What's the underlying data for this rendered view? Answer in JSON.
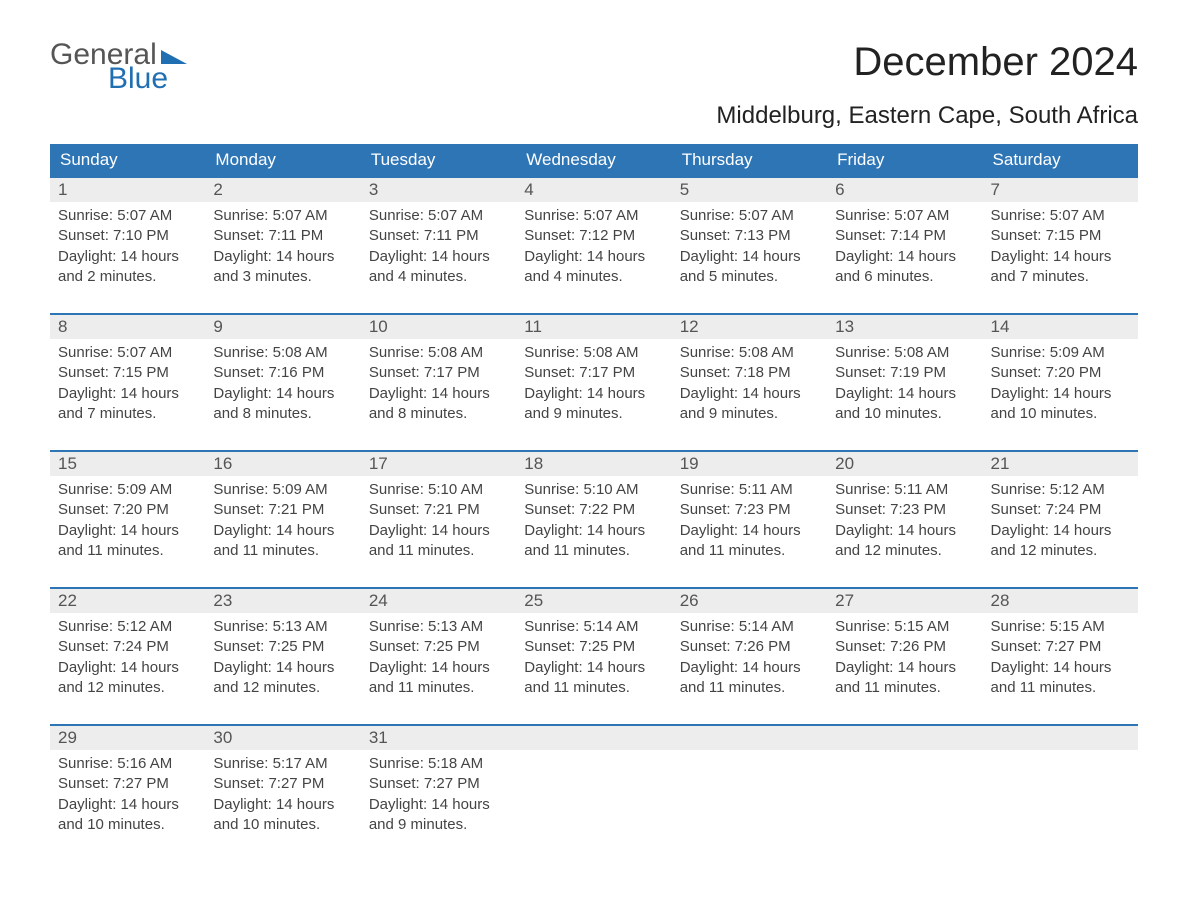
{
  "logo": {
    "text1": "General",
    "text2": "Blue",
    "triangle_color": "#1f6fb2"
  },
  "title": "December 2024",
  "subtitle": "Middelburg, Eastern Cape, South Africa",
  "colors": {
    "header_bg": "#2e75b6",
    "header_text": "#ffffff",
    "daynum_bg": "#ededed",
    "daynum_text": "#555555",
    "body_text": "#444444",
    "row_border": "#2e75b6",
    "page_bg": "#ffffff",
    "logo_gray": "#555555",
    "logo_blue": "#1f6fb2"
  },
  "typography": {
    "title_fontsize": 40,
    "subtitle_fontsize": 24,
    "header_fontsize": 17,
    "daynum_fontsize": 17,
    "body_fontsize": 15,
    "font_family": "Arial"
  },
  "layout": {
    "columns": 7,
    "rows": 5,
    "col_width_pct": 14.28
  },
  "weekdays": [
    "Sunday",
    "Monday",
    "Tuesday",
    "Wednesday",
    "Thursday",
    "Friday",
    "Saturday"
  ],
  "days": [
    {
      "n": "1",
      "sunrise": "5:07 AM",
      "sunset": "7:10 PM",
      "dl": "14 hours and 2 minutes."
    },
    {
      "n": "2",
      "sunrise": "5:07 AM",
      "sunset": "7:11 PM",
      "dl": "14 hours and 3 minutes."
    },
    {
      "n": "3",
      "sunrise": "5:07 AM",
      "sunset": "7:11 PM",
      "dl": "14 hours and 4 minutes."
    },
    {
      "n": "4",
      "sunrise": "5:07 AM",
      "sunset": "7:12 PM",
      "dl": "14 hours and 4 minutes."
    },
    {
      "n": "5",
      "sunrise": "5:07 AM",
      "sunset": "7:13 PM",
      "dl": "14 hours and 5 minutes."
    },
    {
      "n": "6",
      "sunrise": "5:07 AM",
      "sunset": "7:14 PM",
      "dl": "14 hours and 6 minutes."
    },
    {
      "n": "7",
      "sunrise": "5:07 AM",
      "sunset": "7:15 PM",
      "dl": "14 hours and 7 minutes."
    },
    {
      "n": "8",
      "sunrise": "5:07 AM",
      "sunset": "7:15 PM",
      "dl": "14 hours and 7 minutes."
    },
    {
      "n": "9",
      "sunrise": "5:08 AM",
      "sunset": "7:16 PM",
      "dl": "14 hours and 8 minutes."
    },
    {
      "n": "10",
      "sunrise": "5:08 AM",
      "sunset": "7:17 PM",
      "dl": "14 hours and 8 minutes."
    },
    {
      "n": "11",
      "sunrise": "5:08 AM",
      "sunset": "7:17 PM",
      "dl": "14 hours and 9 minutes."
    },
    {
      "n": "12",
      "sunrise": "5:08 AM",
      "sunset": "7:18 PM",
      "dl": "14 hours and 9 minutes."
    },
    {
      "n": "13",
      "sunrise": "5:08 AM",
      "sunset": "7:19 PM",
      "dl": "14 hours and 10 minutes."
    },
    {
      "n": "14",
      "sunrise": "5:09 AM",
      "sunset": "7:20 PM",
      "dl": "14 hours and 10 minutes."
    },
    {
      "n": "15",
      "sunrise": "5:09 AM",
      "sunset": "7:20 PM",
      "dl": "14 hours and 11 minutes."
    },
    {
      "n": "16",
      "sunrise": "5:09 AM",
      "sunset": "7:21 PM",
      "dl": "14 hours and 11 minutes."
    },
    {
      "n": "17",
      "sunrise": "5:10 AM",
      "sunset": "7:21 PM",
      "dl": "14 hours and 11 minutes."
    },
    {
      "n": "18",
      "sunrise": "5:10 AM",
      "sunset": "7:22 PM",
      "dl": "14 hours and 11 minutes."
    },
    {
      "n": "19",
      "sunrise": "5:11 AM",
      "sunset": "7:23 PM",
      "dl": "14 hours and 11 minutes."
    },
    {
      "n": "20",
      "sunrise": "5:11 AM",
      "sunset": "7:23 PM",
      "dl": "14 hours and 12 minutes."
    },
    {
      "n": "21",
      "sunrise": "5:12 AM",
      "sunset": "7:24 PM",
      "dl": "14 hours and 12 minutes."
    },
    {
      "n": "22",
      "sunrise": "5:12 AM",
      "sunset": "7:24 PM",
      "dl": "14 hours and 12 minutes."
    },
    {
      "n": "23",
      "sunrise": "5:13 AM",
      "sunset": "7:25 PM",
      "dl": "14 hours and 12 minutes."
    },
    {
      "n": "24",
      "sunrise": "5:13 AM",
      "sunset": "7:25 PM",
      "dl": "14 hours and 11 minutes."
    },
    {
      "n": "25",
      "sunrise": "5:14 AM",
      "sunset": "7:25 PM",
      "dl": "14 hours and 11 minutes."
    },
    {
      "n": "26",
      "sunrise": "5:14 AM",
      "sunset": "7:26 PM",
      "dl": "14 hours and 11 minutes."
    },
    {
      "n": "27",
      "sunrise": "5:15 AM",
      "sunset": "7:26 PM",
      "dl": "14 hours and 11 minutes."
    },
    {
      "n": "28",
      "sunrise": "5:15 AM",
      "sunset": "7:27 PM",
      "dl": "14 hours and 11 minutes."
    },
    {
      "n": "29",
      "sunrise": "5:16 AM",
      "sunset": "7:27 PM",
      "dl": "14 hours and 10 minutes."
    },
    {
      "n": "30",
      "sunrise": "5:17 AM",
      "sunset": "7:27 PM",
      "dl": "14 hours and 10 minutes."
    },
    {
      "n": "31",
      "sunrise": "5:18 AM",
      "sunset": "7:27 PM",
      "dl": "14 hours and 9 minutes."
    }
  ],
  "labels": {
    "sunrise": "Sunrise: ",
    "sunset": "Sunset: ",
    "daylight": "Daylight: "
  }
}
